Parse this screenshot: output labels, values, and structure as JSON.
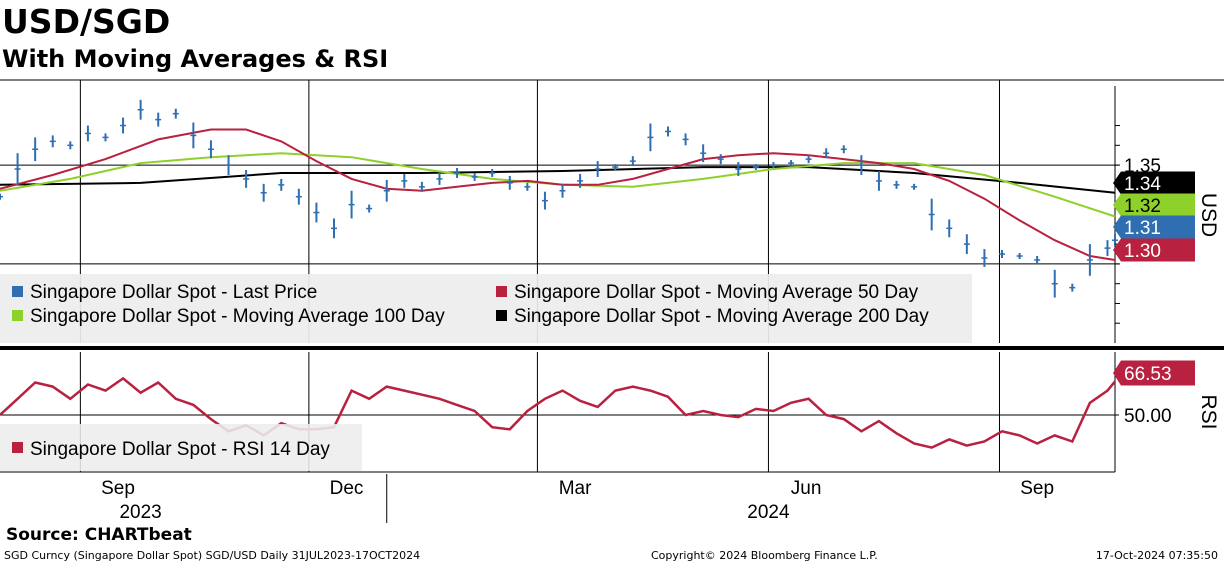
{
  "header": {
    "title": "USD/SGD",
    "subtitle": "With Moving Averages & RSI"
  },
  "footer": {
    "source": "Source: CHARTbeat",
    "ticker_info": "SGD Curncy (Singapore Dollar Spot) SGD/USD  Daily 31JUL2023-17OCT2024",
    "copyright": "Copyright© 2024 Bloomberg Finance L.P.",
    "timestamp": "17-Oct-2024 07:35:50"
  },
  "chart_data": [
    {
      "type": "line",
      "panel": "price",
      "x_start": "2023-07-31",
      "x_end": "2024-10-17",
      "ylabel": "USD",
      "ylim": [
        1.26,
        1.39
      ],
      "yticks": [
        1.35
      ],
      "grid": "horizontal reference lines at 1.35 and 1.30",
      "x_tick_labels": [
        "Sep",
        "Dec",
        "Mar",
        "Jun",
        "Sep"
      ],
      "year_labels": [
        "2023",
        "2024"
      ],
      "legend_position": "lower-left",
      "series": [
        {
          "name": "Singapore Dollar Spot - Last Price",
          "style": "bars",
          "color": "#2f6eb0",
          "last_value_label": "1.31",
          "points": [
            [
              "2023-07-31",
              1.334
            ],
            [
              "2023-08-07",
              1.348
            ],
            [
              "2023-08-14",
              1.358
            ],
            [
              "2023-08-21",
              1.362
            ],
            [
              "2023-08-28",
              1.36
            ],
            [
              "2023-09-04",
              1.366
            ],
            [
              "2023-09-11",
              1.364
            ],
            [
              "2023-09-18",
              1.37
            ],
            [
              "2023-09-25",
              1.378
            ],
            [
              "2023-10-02",
              1.373
            ],
            [
              "2023-10-09",
              1.376
            ],
            [
              "2023-10-16",
              1.365
            ],
            [
              "2023-10-23",
              1.358
            ],
            [
              "2023-10-30",
              1.35
            ],
            [
              "2023-11-06",
              1.343
            ],
            [
              "2023-11-13",
              1.336
            ],
            [
              "2023-11-20",
              1.34
            ],
            [
              "2023-11-27",
              1.334
            ],
            [
              "2023-12-04",
              1.326
            ],
            [
              "2023-12-11",
              1.318
            ],
            [
              "2023-12-18",
              1.33
            ],
            [
              "2023-12-25",
              1.328
            ],
            [
              "2024-01-01",
              1.337
            ],
            [
              "2024-01-08",
              1.342
            ],
            [
              "2024-01-15",
              1.339
            ],
            [
              "2024-01-22",
              1.343
            ],
            [
              "2024-01-29",
              1.346
            ],
            [
              "2024-02-05",
              1.344
            ],
            [
              "2024-02-12",
              1.346
            ],
            [
              "2024-02-19",
              1.341
            ],
            [
              "2024-02-26",
              1.339
            ],
            [
              "2024-03-04",
              1.332
            ],
            [
              "2024-03-11",
              1.337
            ],
            [
              "2024-03-18",
              1.342
            ],
            [
              "2024-03-25",
              1.348
            ],
            [
              "2024-04-01",
              1.349
            ],
            [
              "2024-04-08",
              1.352
            ],
            [
              "2024-04-15",
              1.364
            ],
            [
              "2024-04-22",
              1.367
            ],
            [
              "2024-04-29",
              1.363
            ],
            [
              "2024-05-06",
              1.356
            ],
            [
              "2024-05-13",
              1.353
            ],
            [
              "2024-05-20",
              1.348
            ],
            [
              "2024-05-27",
              1.349
            ],
            [
              "2024-06-03",
              1.35
            ],
            [
              "2024-06-10",
              1.351
            ],
            [
              "2024-06-17",
              1.353
            ],
            [
              "2024-06-24",
              1.356
            ],
            [
              "2024-07-01",
              1.358
            ],
            [
              "2024-07-08",
              1.35
            ],
            [
              "2024-07-15",
              1.342
            ],
            [
              "2024-07-22",
              1.34
            ],
            [
              "2024-07-29",
              1.339
            ],
            [
              "2024-08-05",
              1.325
            ],
            [
              "2024-08-12",
              1.318
            ],
            [
              "2024-08-19",
              1.31
            ],
            [
              "2024-08-26",
              1.303
            ],
            [
              "2024-09-02",
              1.305
            ],
            [
              "2024-09-09",
              1.304
            ],
            [
              "2024-09-16",
              1.302
            ],
            [
              "2024-09-23",
              1.29
            ],
            [
              "2024-09-30",
              1.288
            ],
            [
              "2024-10-07",
              1.302
            ],
            [
              "2024-10-14",
              1.308
            ],
            [
              "2024-10-17",
              1.312
            ]
          ]
        },
        {
          "name": "Singapore Dollar Spot - Moving Average 50 Day",
          "color": "#b8213f",
          "last_value_label": "1.30",
          "points": [
            [
              "2023-07-31",
              1.338
            ],
            [
              "2023-08-21",
              1.345
            ],
            [
              "2023-09-11",
              1.353
            ],
            [
              "2023-10-02",
              1.363
            ],
            [
              "2023-10-23",
              1.368
            ],
            [
              "2023-11-06",
              1.368
            ],
            [
              "2023-11-20",
              1.362
            ],
            [
              "2023-12-04",
              1.352
            ],
            [
              "2023-12-18",
              1.343
            ],
            [
              "2024-01-01",
              1.338
            ],
            [
              "2024-01-15",
              1.337
            ],
            [
              "2024-01-29",
              1.339
            ],
            [
              "2024-02-12",
              1.341
            ],
            [
              "2024-02-26",
              1.342
            ],
            [
              "2024-03-11",
              1.34
            ],
            [
              "2024-03-25",
              1.34
            ],
            [
              "2024-04-08",
              1.343
            ],
            [
              "2024-04-22",
              1.348
            ],
            [
              "2024-05-06",
              1.353
            ],
            [
              "2024-05-20",
              1.355
            ],
            [
              "2024-06-03",
              1.356
            ],
            [
              "2024-06-17",
              1.355
            ],
            [
              "2024-07-01",
              1.353
            ],
            [
              "2024-07-15",
              1.351
            ],
            [
              "2024-07-29",
              1.348
            ],
            [
              "2024-08-12",
              1.342
            ],
            [
              "2024-08-26",
              1.333
            ],
            [
              "2024-09-09",
              1.322
            ],
            [
              "2024-09-23",
              1.312
            ],
            [
              "2024-10-07",
              1.304
            ],
            [
              "2024-10-17",
              1.302
            ]
          ]
        },
        {
          "name": "Singapore Dollar Spot - Moving Average 100 Day",
          "color": "#8ed12a",
          "last_value_label": "1.32",
          "points": [
            [
              "2023-07-31",
              1.337
            ],
            [
              "2023-08-28",
              1.343
            ],
            [
              "2023-09-25",
              1.351
            ],
            [
              "2023-10-23",
              1.354
            ],
            [
              "2023-11-20",
              1.356
            ],
            [
              "2023-12-18",
              1.354
            ],
            [
              "2024-01-15",
              1.348
            ],
            [
              "2024-02-12",
              1.343
            ],
            [
              "2024-03-11",
              1.34
            ],
            [
              "2024-04-08",
              1.339
            ],
            [
              "2024-05-06",
              1.343
            ],
            [
              "2024-06-03",
              1.348
            ],
            [
              "2024-07-01",
              1.351
            ],
            [
              "2024-07-29",
              1.351
            ],
            [
              "2024-08-26",
              1.345
            ],
            [
              "2024-09-23",
              1.334
            ],
            [
              "2024-10-17",
              1.324
            ]
          ]
        },
        {
          "name": "Singapore Dollar Spot - Moving Average 200 Day",
          "color": "#000000",
          "last_value_label": "1.34",
          "points": [
            [
              "2023-07-31",
              1.34
            ],
            [
              "2023-09-25",
              1.341
            ],
            [
              "2023-11-20",
              1.346
            ],
            [
              "2024-01-15",
              1.346
            ],
            [
              "2024-03-11",
              1.347
            ],
            [
              "2024-05-06",
              1.349
            ],
            [
              "2024-06-17",
              1.349
            ],
            [
              "2024-07-29",
              1.346
            ],
            [
              "2024-09-09",
              1.341
            ],
            [
              "2024-10-17",
              1.336
            ]
          ]
        }
      ]
    },
    {
      "type": "line",
      "panel": "rsi",
      "x_start": "2023-07-31",
      "x_end": "2024-10-17",
      "ylabel": "RSI",
      "ylim": [
        22,
        80
      ],
      "yticks": [
        50
      ],
      "ytick_labels": [
        "50.00"
      ],
      "legend_position": "lower-left",
      "series": [
        {
          "name": "Singapore Dollar Spot - RSI 14 Day",
          "color": "#b8213f",
          "last_value_label": "66.53",
          "points": [
            [
              "2023-07-31",
              50
            ],
            [
              "2023-08-07",
              58
            ],
            [
              "2023-08-14",
              66
            ],
            [
              "2023-08-21",
              64
            ],
            [
              "2023-08-28",
              58
            ],
            [
              "2023-09-04",
              65
            ],
            [
              "2023-09-11",
              62
            ],
            [
              "2023-09-18",
              68
            ],
            [
              "2023-09-25",
              61
            ],
            [
              "2023-10-02",
              66
            ],
            [
              "2023-10-09",
              58
            ],
            [
              "2023-10-16",
              55
            ],
            [
              "2023-10-23",
              48
            ],
            [
              "2023-10-30",
              42
            ],
            [
              "2023-11-06",
              45
            ],
            [
              "2023-11-13",
              40
            ],
            [
              "2023-11-20",
              46
            ],
            [
              "2023-11-27",
              43
            ],
            [
              "2023-12-04",
              43
            ],
            [
              "2023-12-11",
              44
            ],
            [
              "2023-12-18",
              62
            ],
            [
              "2023-12-25",
              58
            ],
            [
              "2024-01-01",
              64
            ],
            [
              "2024-01-08",
              62
            ],
            [
              "2024-01-15",
              60
            ],
            [
              "2024-01-22",
              58
            ],
            [
              "2024-01-29",
              55
            ],
            [
              "2024-02-05",
              52
            ],
            [
              "2024-02-12",
              44
            ],
            [
              "2024-02-19",
              43
            ],
            [
              "2024-02-26",
              52
            ],
            [
              "2024-03-04",
              58
            ],
            [
              "2024-03-11",
              62
            ],
            [
              "2024-03-18",
              57
            ],
            [
              "2024-03-25",
              54
            ],
            [
              "2024-04-01",
              62
            ],
            [
              "2024-04-08",
              64
            ],
            [
              "2024-04-15",
              62
            ],
            [
              "2024-04-22",
              59
            ],
            [
              "2024-04-29",
              50
            ],
            [
              "2024-05-06",
              52
            ],
            [
              "2024-05-13",
              50
            ],
            [
              "2024-05-20",
              49
            ],
            [
              "2024-05-27",
              53
            ],
            [
              "2024-06-03",
              52
            ],
            [
              "2024-06-10",
              56
            ],
            [
              "2024-06-17",
              58
            ],
            [
              "2024-06-24",
              50
            ],
            [
              "2024-07-01",
              48
            ],
            [
              "2024-07-08",
              42
            ],
            [
              "2024-07-15",
              47
            ],
            [
              "2024-07-22",
              41
            ],
            [
              "2024-07-29",
              36
            ],
            [
              "2024-08-05",
              34
            ],
            [
              "2024-08-12",
              38
            ],
            [
              "2024-08-19",
              35
            ],
            [
              "2024-08-26",
              37
            ],
            [
              "2024-09-02",
              42
            ],
            [
              "2024-09-09",
              40
            ],
            [
              "2024-09-16",
              36
            ],
            [
              "2024-09-23",
              40
            ],
            [
              "2024-09-30",
              37
            ],
            [
              "2024-10-07",
              56
            ],
            [
              "2024-10-14",
              62
            ],
            [
              "2024-10-17",
              66.53
            ]
          ]
        }
      ]
    }
  ]
}
